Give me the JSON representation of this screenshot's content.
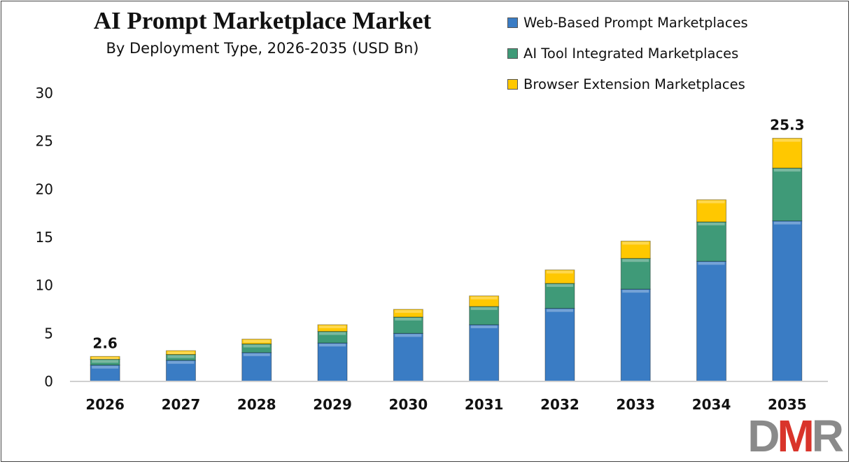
{
  "chart_data": {
    "type": "bar",
    "stacked": true,
    "title": "AI Prompt Marketplace Market",
    "subtitle": "By Deployment Type, 2026-2035 (USD Bn)",
    "categories": [
      "2026",
      "2027",
      "2028",
      "2029",
      "2030",
      "2031",
      "2032",
      "2033",
      "2034",
      "2035"
    ],
    "series": [
      {
        "name": "Web-Based Prompt Marketplaces",
        "color": "#3a7cc4",
        "values": [
          1.7,
          2.2,
          3.0,
          4.0,
          5.0,
          5.9,
          7.6,
          9.6,
          12.5,
          16.7
        ]
      },
      {
        "name": "AI Tool Integrated Marketplaces",
        "color": "#3f9a78",
        "values": [
          0.6,
          0.6,
          0.9,
          1.2,
          1.7,
          1.9,
          2.6,
          3.2,
          4.1,
          5.5
        ]
      },
      {
        "name": "Browser Extension Marketplaces",
        "color": "#ffc800",
        "values": [
          0.3,
          0.4,
          0.5,
          0.7,
          0.8,
          1.1,
          1.4,
          1.8,
          2.3,
          3.1
        ]
      }
    ],
    "data_labels": [
      {
        "category": "2026",
        "text": "2.6"
      },
      {
        "category": "2035",
        "text": "25.3"
      }
    ],
    "ylim": [
      0,
      30
    ],
    "yticks": [
      0,
      5,
      10,
      15,
      20,
      25,
      30
    ],
    "grid": false,
    "legend": "top-right",
    "xlabel": "",
    "ylabel": ""
  },
  "logo": {
    "text_d": "D",
    "text_m": "M",
    "text_r": "R",
    "gray": "#8a8a8a",
    "red": "#d9342b"
  }
}
